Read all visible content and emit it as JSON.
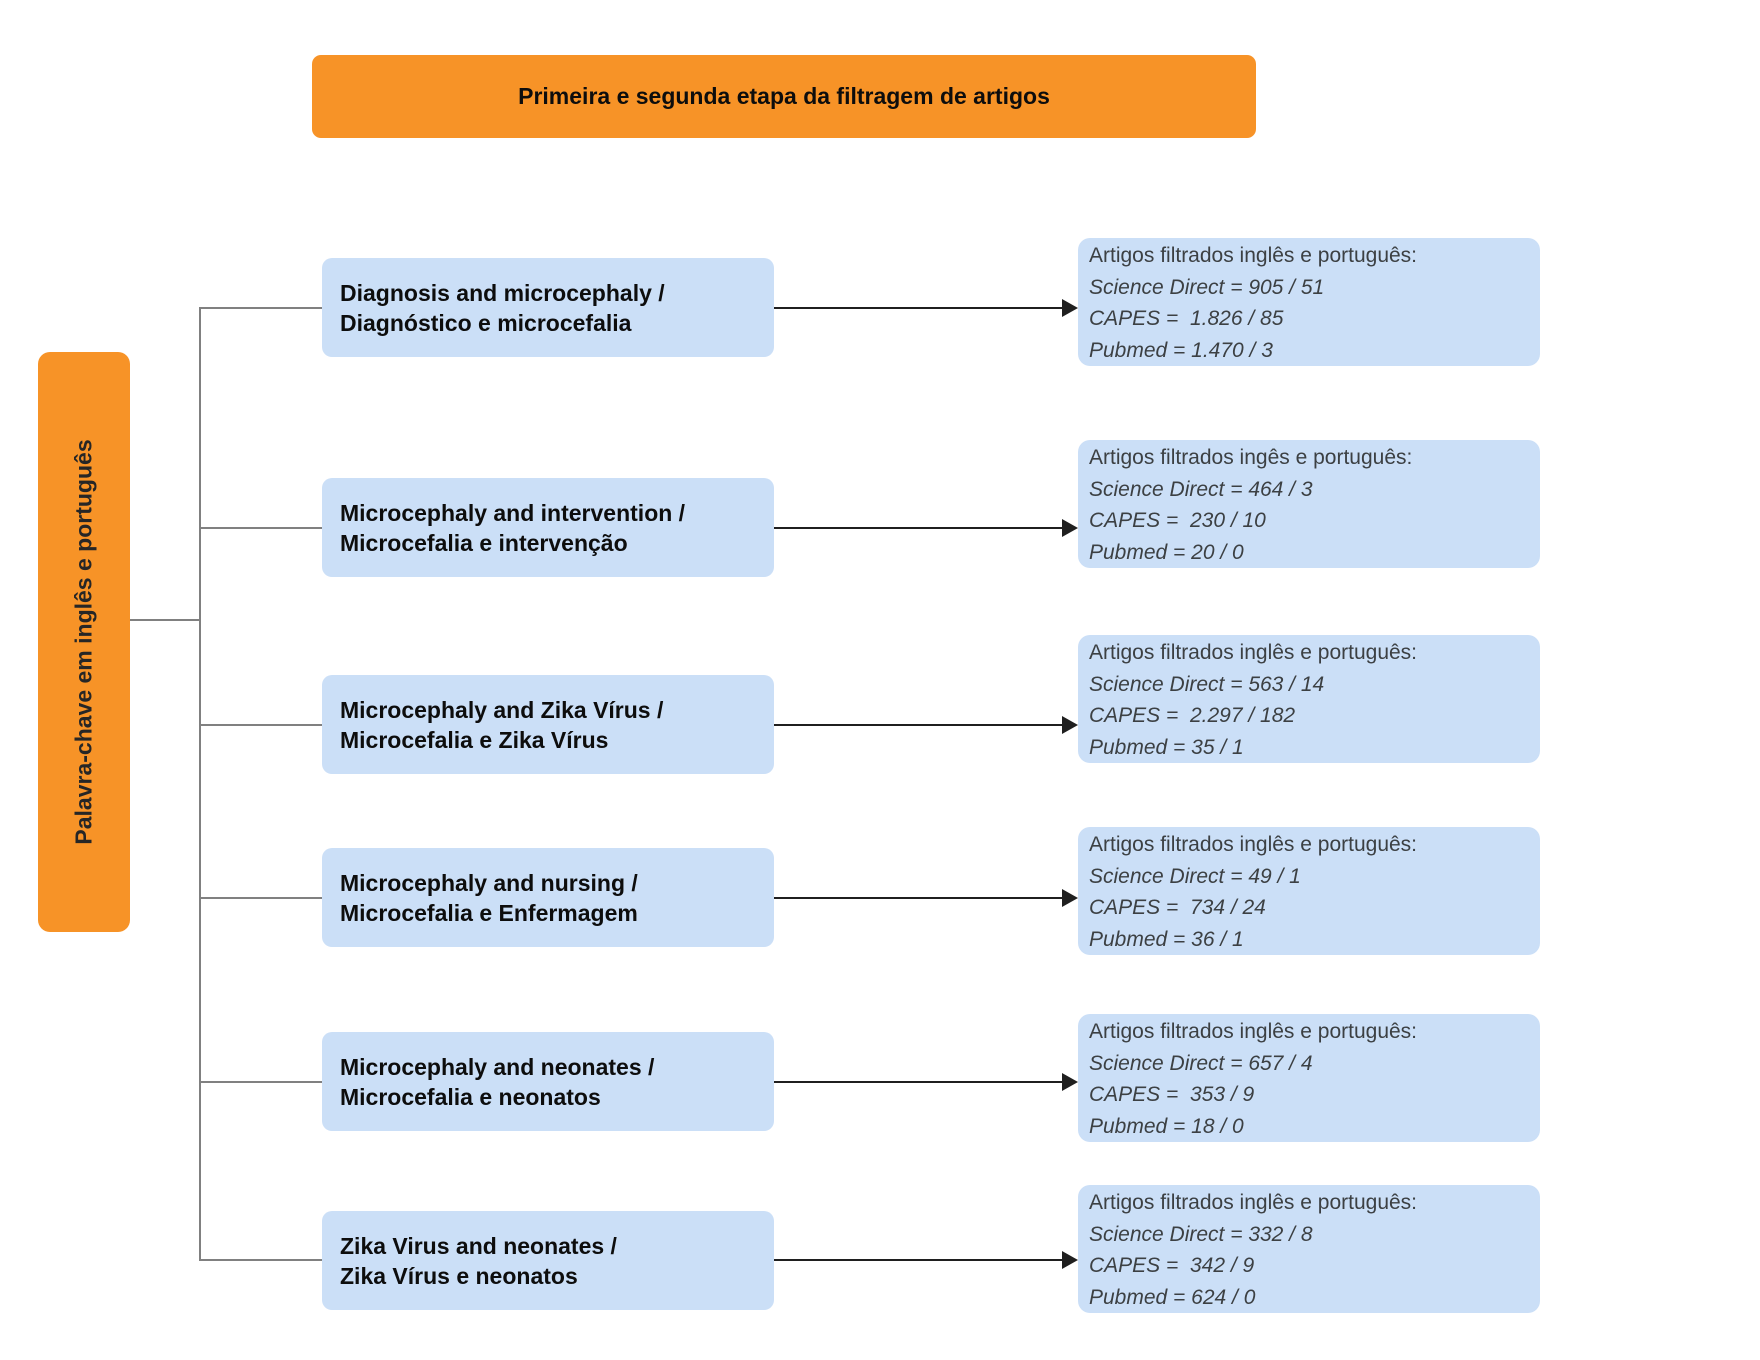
{
  "banner": {
    "label": "Primeira e segunda etapa da filtragem de artigos"
  },
  "left_box": {
    "label": "Palavra-chave em inglês e português"
  },
  "colors": {
    "orange": "#F79327",
    "blue": "#CBDFF7",
    "line_gray": "#808080",
    "arrow_dark": "#1F1F1F",
    "result_text": "#3C4043",
    "keyword_text": "#0D0D0D"
  },
  "rows": [
    {
      "keyword_line1": "Diagnosis and microcephaly /",
      "keyword_line2": "Diagnóstico e microcefalia",
      "result_header": "Artigos filtrados inglês e português:",
      "results": [
        "Science Direct = 905 / 51",
        "CAPES =  1.826 / 85",
        "Pubmed = 1.470 / 3"
      ]
    },
    {
      "keyword_line1": "Microcephaly and intervention /",
      "keyword_line2": "Microcefalia e intervenção",
      "result_header": "Artigos filtrados ingês e português:",
      "results": [
        "Science Direct = 464 / 3",
        "CAPES =  230 / 10",
        "Pubmed = 20 / 0"
      ]
    },
    {
      "keyword_line1": "Microcephaly and Zika Vírus /",
      "keyword_line2": "Microcefalia e Zika Vírus",
      "result_header": "Artigos filtrados inglês e português:",
      "results": [
        "Science Direct = 563 / 14",
        "CAPES =  2.297 / 182",
        "Pubmed = 35 / 1"
      ]
    },
    {
      "keyword_line1": "Microcephaly and nursing /",
      "keyword_line2": "Microcefalia e Enfermagem",
      "result_header": "Artigos filtrados inglês e português:",
      "results": [
        "Science Direct = 49 / 1",
        "CAPES =  734 / 24",
        "Pubmed = 36 / 1"
      ]
    },
    {
      "keyword_line1": "Microcephaly and neonates /",
      "keyword_line2": "Microcefalia e neonatos",
      "result_header": "Artigos filtrados inglês e português:",
      "results": [
        "Science Direct = 657 / 4",
        "CAPES =  353 / 9",
        "Pubmed = 18 / 0"
      ]
    },
    {
      "keyword_line1": "Zika Virus and neonates /",
      "keyword_line2": "Zika Vírus e neonatos",
      "result_header": "Artigos filtrados inglês e português:",
      "results": [
        "Science Direct = 332 / 8",
        "CAPES =  342 / 9",
        "Pubmed = 624 / 0"
      ]
    }
  ]
}
